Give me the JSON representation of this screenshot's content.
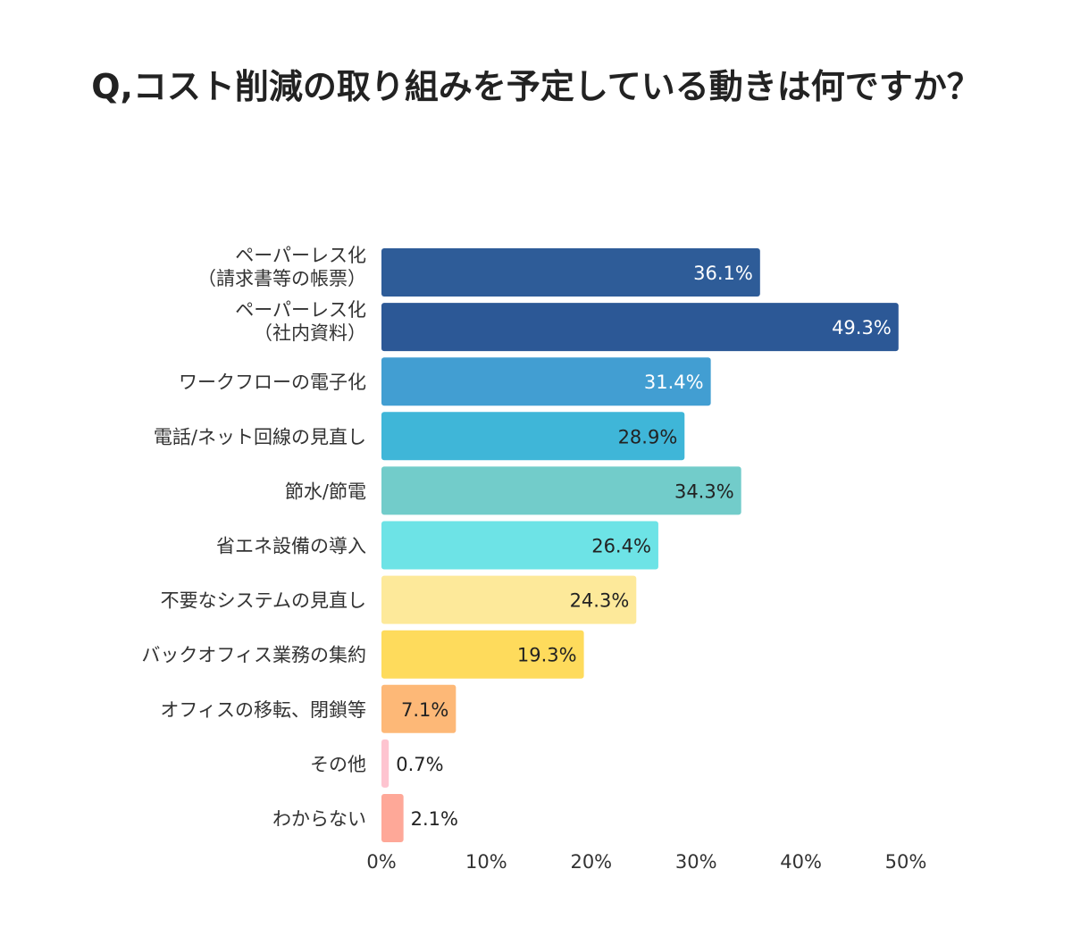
{
  "chart_data": {
    "type": "bar",
    "orientation": "horizontal",
    "title": "Q,コスト削減の取り組みを予定している動きは何ですか？",
    "categories": [
      [
        "ペーパーレス化",
        "（請求書等の帳票）"
      ],
      [
        "ペーパーレス化",
        "（社内資料）"
      ],
      [
        "ワークフローの電子化"
      ],
      [
        "電話/ネット回線の見直し"
      ],
      [
        "節水/節電"
      ],
      [
        "省エネ設備の導入"
      ],
      [
        "不要なシステムの見直し"
      ],
      [
        "バックオフィス業務の集約"
      ],
      [
        "オフィスの移転、閉鎖等"
      ],
      [
        "その他"
      ],
      [
        "わからない"
      ]
    ],
    "values": [
      36.1,
      49.3,
      31.4,
      28.9,
      34.3,
      26.4,
      24.3,
      19.3,
      7.1,
      0.7,
      2.1
    ],
    "value_labels": [
      "36.1%",
      "49.3%",
      "31.4%",
      "28.9%",
      "34.3%",
      "26.4%",
      "24.3%",
      "19.3%",
      "7.1%",
      "0.7%",
      "2.1%"
    ],
    "colors": [
      "#2e5c98",
      "#2c5896",
      "#429ed2",
      "#3fb6d8",
      "#72ccca",
      "#6de3e6",
      "#fde99a",
      "#fedb5c",
      "#fdb877",
      "#fec4d0",
      "#fea898"
    ],
    "label_colors": [
      "#ffffff",
      "#ffffff",
      "#ffffff",
      "#222222",
      "#222222",
      "#222222",
      "#222222",
      "#222222",
      "#222222",
      "#222222",
      "#222222"
    ],
    "xlim": [
      0,
      50
    ],
    "x_ticks": [
      "0%",
      "10%",
      "20%",
      "30%",
      "40%",
      "50%"
    ],
    "x_tick_values": [
      0,
      10,
      20,
      30,
      40,
      50
    ],
    "grid": false,
    "legend": "none"
  }
}
